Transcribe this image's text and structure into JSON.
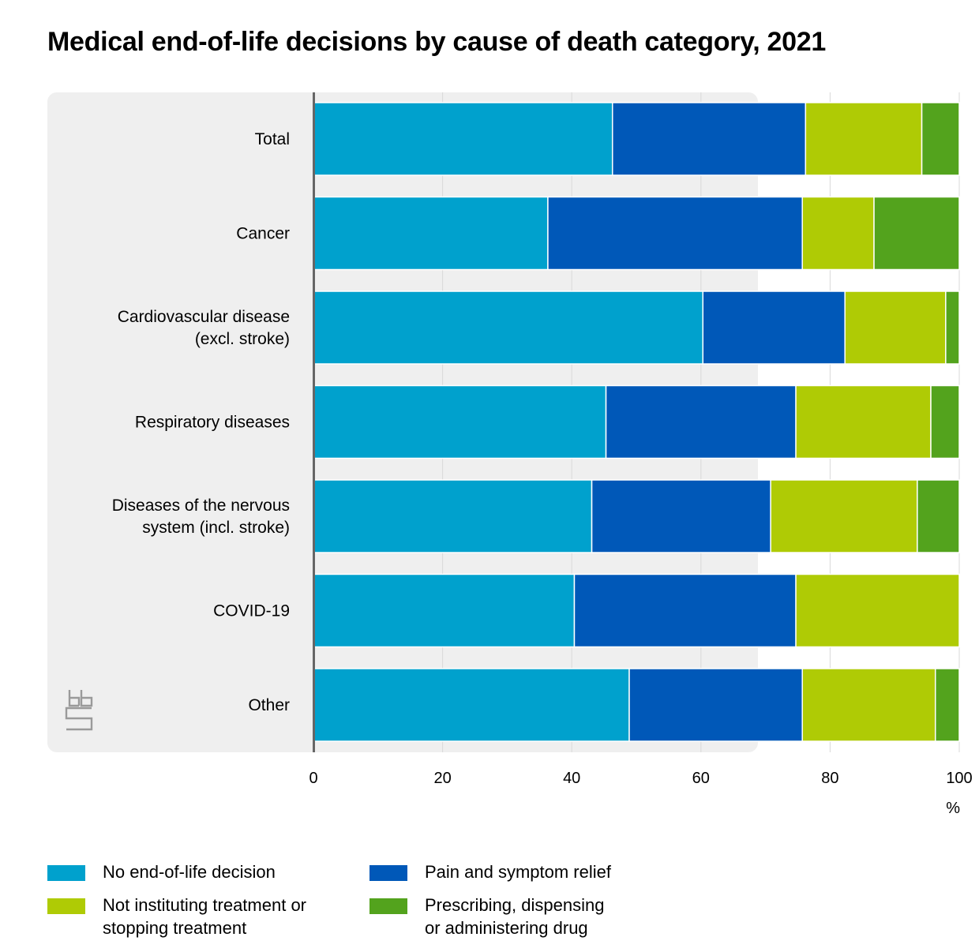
{
  "title": "Medical end-of-life decisions by cause of death category, 2021",
  "chart_data": {
    "type": "bar",
    "orientation": "horizontal",
    "stacked": true,
    "title": "Medical end-of-life decisions by cause of death category, 2021",
    "xlabel": "%",
    "ylabel": "",
    "xlim": [
      0,
      100
    ],
    "xticks": [
      0,
      20,
      40,
      60,
      80,
      100
    ],
    "grid": "vertical",
    "legend_position": "bottom",
    "categories": [
      "Total",
      "Cancer",
      "Cardiovascular disease\n(excl. stroke)",
      "Respiratory diseases",
      "Diseases of the nervous\nsystem (incl. stroke)",
      "COVID-19",
      "Other"
    ],
    "series": [
      {
        "name": "No end-of-life decision",
        "color": "#00a1cd",
        "values": [
          46.3,
          36.3,
          60.3,
          45.3,
          43.1,
          40.4,
          48.9
        ]
      },
      {
        "name": "Pain and symptom relief",
        "color": "#0058b8",
        "values": [
          29.9,
          39.4,
          22.0,
          29.4,
          27.7,
          34.3,
          26.8
        ]
      },
      {
        "name": "Not instituting treatment or\nstopping treatment",
        "color": "#afcb05",
        "values": [
          18.0,
          11.1,
          15.6,
          20.9,
          22.7,
          25.3,
          20.6
        ]
      },
      {
        "name": "Prescribing, dispensing\nor administering drug",
        "color": "#53a31d",
        "values": [
          5.8,
          13.2,
          2.1,
          4.4,
          6.5,
          0.0,
          3.7
        ]
      }
    ]
  },
  "colors": {
    "panel": "#efefef",
    "axis": "#666666",
    "grid": "#d9d9d9"
  },
  "logo": {
    "icon": "cbs-logo-icon",
    "text": "cbs"
  }
}
